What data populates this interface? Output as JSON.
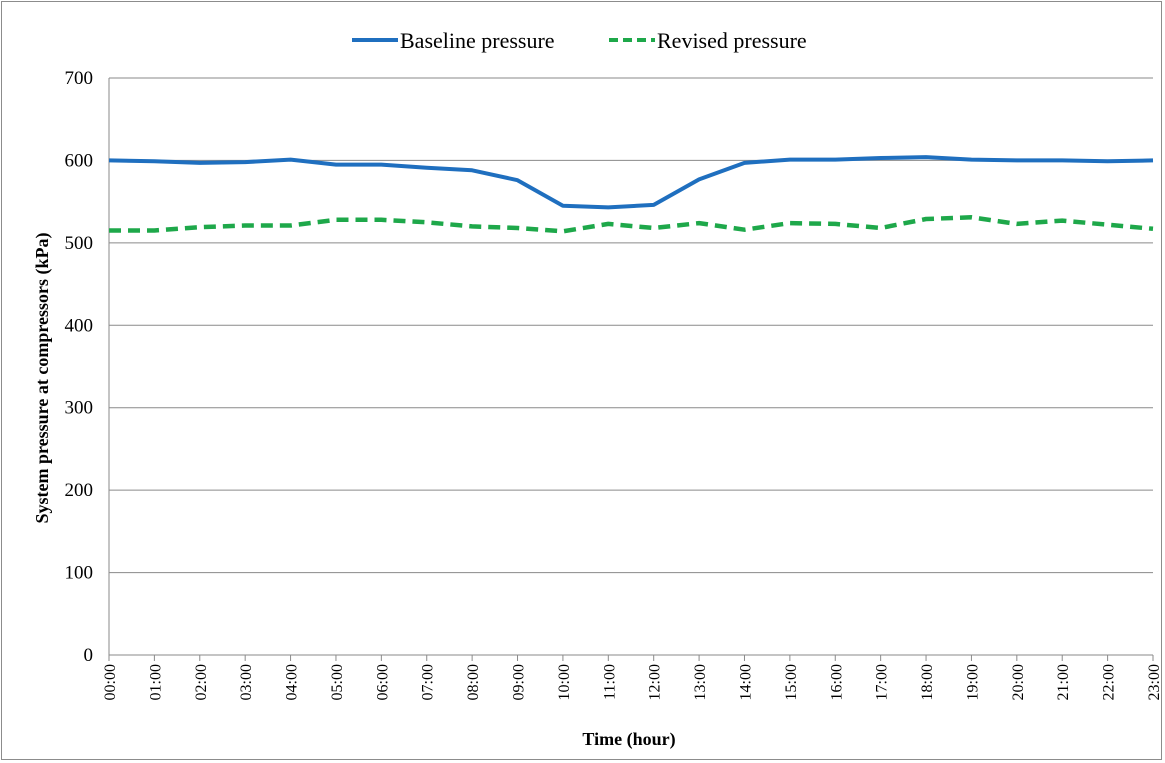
{
  "chart_data": {
    "type": "line",
    "title": "",
    "xlabel": "Time (hour)",
    "ylabel": "System pressure at compressors (kPa)",
    "ylim": [
      0,
      700
    ],
    "yticks": [
      0,
      100,
      200,
      300,
      400,
      500,
      600,
      700
    ],
    "grid": true,
    "legend_position": "top-center",
    "categories": [
      "00:00",
      "01:00",
      "02:00",
      "03:00",
      "04:00",
      "05:00",
      "06:00",
      "07:00",
      "08:00",
      "09:00",
      "10:00",
      "11:00",
      "12:00",
      "13:00",
      "14:00",
      "15:00",
      "16:00",
      "17:00",
      "18:00",
      "19:00",
      "20:00",
      "21:00",
      "22:00",
      "23:00"
    ],
    "series": [
      {
        "name": "Baseline pressure",
        "color": "#1f6fbf",
        "style": "solid",
        "values": [
          600,
          599,
          597,
          598,
          601,
          595,
          595,
          591,
          588,
          576,
          545,
          543,
          546,
          577,
          597,
          601,
          601,
          603,
          604,
          601,
          600,
          600,
          599,
          600
        ]
      },
      {
        "name": "Revised pressure",
        "color": "#1ea84a",
        "style": "dashed",
        "values": [
          515,
          515,
          519,
          521,
          521,
          528,
          528,
          525,
          520,
          518,
          514,
          523,
          518,
          524,
          516,
          524,
          523,
          518,
          529,
          531,
          523,
          527,
          522,
          517
        ]
      }
    ]
  }
}
